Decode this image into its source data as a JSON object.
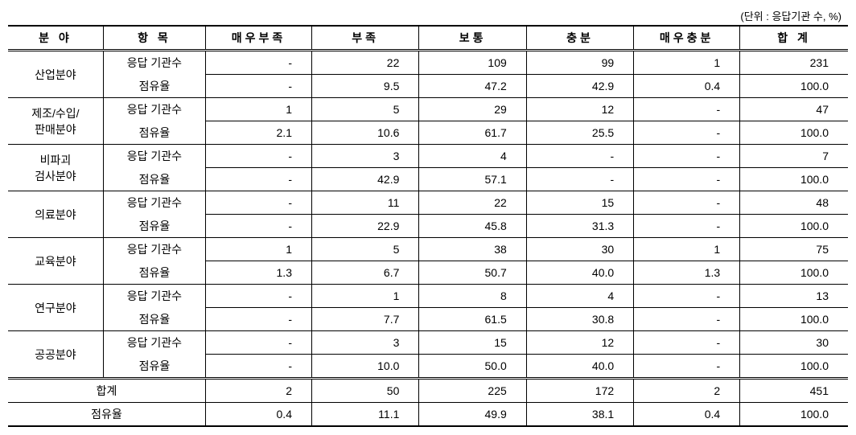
{
  "unit_label": "(단위 : 응답기관 수, %)",
  "headers": {
    "category": "분 야",
    "item": "항 목",
    "c1": "매우부족",
    "c2": "부족",
    "c3": "보통",
    "c4": "충분",
    "c5": "매우충분",
    "total": "합 계"
  },
  "item_labels": {
    "count": "응답 기관수",
    "share": "점유율"
  },
  "sections": [
    {
      "name": "산업분야",
      "count": {
        "c1": "-",
        "c2": "22",
        "c3": "109",
        "c4": "99",
        "c5": "1",
        "total": "231"
      },
      "share": {
        "c1": "-",
        "c2": "9.5",
        "c3": "47.2",
        "c4": "42.9",
        "c5": "0.4",
        "total": "100.0"
      }
    },
    {
      "name": "제조/수입/\n판매분야",
      "count": {
        "c1": "1",
        "c2": "5",
        "c3": "29",
        "c4": "12",
        "c5": "-",
        "total": "47"
      },
      "share": {
        "c1": "2.1",
        "c2": "10.6",
        "c3": "61.7",
        "c4": "25.5",
        "c5": "-",
        "total": "100.0"
      }
    },
    {
      "name": "비파괴\n검사분야",
      "count": {
        "c1": "-",
        "c2": "3",
        "c3": "4",
        "c4": "-",
        "c5": "-",
        "total": "7"
      },
      "share": {
        "c1": "-",
        "c2": "42.9",
        "c3": "57.1",
        "c4": "-",
        "c5": "-",
        "total": "100.0"
      }
    },
    {
      "name": "의료분야",
      "count": {
        "c1": "-",
        "c2": "11",
        "c3": "22",
        "c4": "15",
        "c5": "-",
        "total": "48"
      },
      "share": {
        "c1": "-",
        "c2": "22.9",
        "c3": "45.8",
        "c4": "31.3",
        "c5": "-",
        "total": "100.0"
      }
    },
    {
      "name": "교육분야",
      "count": {
        "c1": "1",
        "c2": "5",
        "c3": "38",
        "c4": "30",
        "c5": "1",
        "total": "75"
      },
      "share": {
        "c1": "1.3",
        "c2": "6.7",
        "c3": "50.7",
        "c4": "40.0",
        "c5": "1.3",
        "total": "100.0"
      }
    },
    {
      "name": "연구분야",
      "count": {
        "c1": "-",
        "c2": "1",
        "c3": "8",
        "c4": "4",
        "c5": "-",
        "total": "13"
      },
      "share": {
        "c1": "-",
        "c2": "7.7",
        "c3": "61.5",
        "c4": "30.8",
        "c5": "-",
        "total": "100.0"
      }
    },
    {
      "name": "공공분야",
      "count": {
        "c1": "-",
        "c2": "3",
        "c3": "15",
        "c4": "12",
        "c5": "-",
        "total": "30"
      },
      "share": {
        "c1": "-",
        "c2": "10.0",
        "c3": "50.0",
        "c4": "40.0",
        "c5": "-",
        "total": "100.0"
      }
    }
  ],
  "totals": {
    "count_label": "합계",
    "share_label": "점유율",
    "count": {
      "c1": "2",
      "c2": "50",
      "c3": "225",
      "c4": "172",
      "c5": "2",
      "total": "451"
    },
    "share": {
      "c1": "0.4",
      "c2": "11.1",
      "c3": "49.9",
      "c4": "38.1",
      "c5": "0.4",
      "total": "100.0"
    }
  }
}
